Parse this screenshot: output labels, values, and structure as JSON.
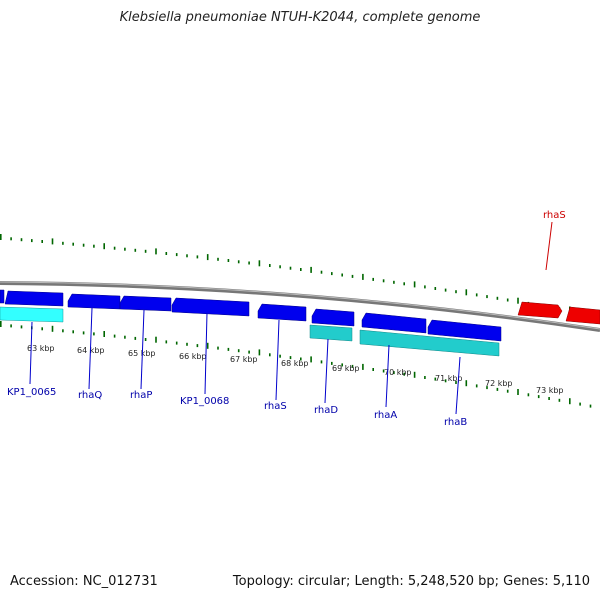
{
  "title": "Klebsiella pneumoniae NTUH-K2044, complete genome",
  "footer": {
    "accession": "Accession: NC_012731",
    "summary": "Topology: circular; Length: 5,248,520 bp; Genes: 5,110"
  },
  "colors": {
    "backbone": "#8a8a8a",
    "forward_gene": "#0000ee",
    "reverse_gene": "#ee0000",
    "cds_product": "#22cccc",
    "kp_cds": "#33ffff",
    "ticks": "#006600"
  },
  "ticks": [
    {
      "label": "63 kbp"
    },
    {
      "label": "64 kbp"
    },
    {
      "label": "65 kbp"
    },
    {
      "label": "66 kbp"
    },
    {
      "label": "67 kbp"
    },
    {
      "label": "68 kbp"
    },
    {
      "label": "69 kbp"
    },
    {
      "label": "70 kbp"
    },
    {
      "label": "71 kbp"
    },
    {
      "label": "72 kbp"
    },
    {
      "label": "73 kbp"
    }
  ],
  "genes_inner": [
    {
      "label": "KP1_0065"
    },
    {
      "label": "rhaQ"
    },
    {
      "label": "rhaP"
    },
    {
      "label": "KP1_0068"
    },
    {
      "label": "rhaS"
    },
    {
      "label": "rhaD"
    },
    {
      "label": "rhaA"
    },
    {
      "label": "rhaB"
    }
  ],
  "genes_outer": [
    {
      "label": "rhaS"
    }
  ]
}
